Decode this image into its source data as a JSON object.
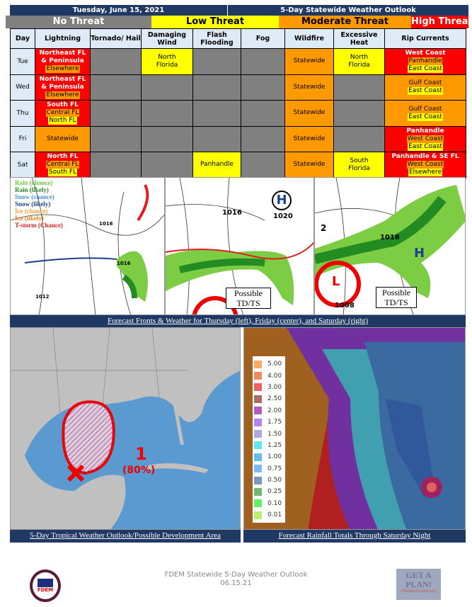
{
  "header": {
    "date": "Tuesday, June 15, 2021",
    "title": "5-Day Statewide Weather Outlook"
  },
  "threat_legend": [
    {
      "label": "No Threat",
      "color": "#808080",
      "text_color": "#ffffff"
    },
    {
      "label": "Low Threat",
      "color": "#ffff00",
      "text_color": "#000000"
    },
    {
      "label": "Moderate Threat",
      "color": "#ff9900",
      "text_color": "#000000"
    },
    {
      "label": "High Threat",
      "color": "#ff0000",
      "text_color": "#ffffff"
    }
  ],
  "table": {
    "columns": [
      "Day",
      "Lightning",
      "Tornado/ Hail",
      "Damaging Wind",
      "Flash Flooding",
      "Fog",
      "Wildfire",
      "Excessive Heat",
      "Rip Currents"
    ],
    "rows": [
      {
        "day": "Tue",
        "cells": [
          {
            "bg": "r",
            "lines": [
              {
                "t": "Northeast FL",
                "l": "r"
              },
              {
                "t": "& Peninsula",
                "l": "r"
              },
              {
                "t": "Elsewhere",
                "l": "o"
              }
            ]
          },
          {
            "bg": "g",
            "lines": []
          },
          {
            "bg": "y",
            "lines": [
              {
                "t": "North",
                "l": "n"
              },
              {
                "t": "Florida",
                "l": "n"
              }
            ]
          },
          {
            "bg": "g",
            "lines": []
          },
          {
            "bg": "g",
            "lines": []
          },
          {
            "bg": "o",
            "lines": [
              {
                "t": "Statewide",
                "l": "n"
              }
            ]
          },
          {
            "bg": "y",
            "lines": [
              {
                "t": "North",
                "l": "n"
              },
              {
                "t": "Florida",
                "l": "n"
              }
            ]
          },
          {
            "bg": "r",
            "lines": [
              {
                "t": "West Coast",
                "l": "r"
              },
              {
                "t": "Panhandle",
                "l": "o"
              },
              {
                "t": "East Coast",
                "l": "y"
              }
            ]
          }
        ]
      },
      {
        "day": "Wed",
        "cells": [
          {
            "bg": "r",
            "lines": [
              {
                "t": "Northeast FL",
                "l": "r"
              },
              {
                "t": "& Peninsula",
                "l": "r"
              },
              {
                "t": "Elsewhere",
                "l": "o"
              }
            ]
          },
          {
            "bg": "g",
            "lines": []
          },
          {
            "bg": "g",
            "lines": []
          },
          {
            "bg": "g",
            "lines": []
          },
          {
            "bg": "g",
            "lines": []
          },
          {
            "bg": "o",
            "lines": [
              {
                "t": "Statewide",
                "l": "n"
              }
            ]
          },
          {
            "bg": "g",
            "lines": []
          },
          {
            "bg": "o",
            "lines": [
              {
                "t": "Gulf Coast",
                "l": "n"
              },
              {
                "t": "East Coast",
                "l": "y"
              }
            ]
          }
        ]
      },
      {
        "day": "Thu",
        "cells": [
          {
            "bg": "r",
            "lines": [
              {
                "t": "South FL",
                "l": "r"
              },
              {
                "t": "Central FL",
                "l": "o"
              },
              {
                "t": "North FL",
                "l": "y"
              }
            ]
          },
          {
            "bg": "g",
            "lines": []
          },
          {
            "bg": "g",
            "lines": []
          },
          {
            "bg": "g",
            "lines": []
          },
          {
            "bg": "g",
            "lines": []
          },
          {
            "bg": "o",
            "lines": [
              {
                "t": "Statewide",
                "l": "n"
              }
            ]
          },
          {
            "bg": "g",
            "lines": []
          },
          {
            "bg": "o",
            "lines": [
              {
                "t": "Gulf Coast",
                "l": "n"
              },
              {
                "t": "East Coast",
                "l": "y"
              }
            ]
          }
        ]
      },
      {
        "day": "Fri",
        "cells": [
          {
            "bg": "o",
            "lines": [
              {
                "t": "Statewide",
                "l": "n"
              }
            ]
          },
          {
            "bg": "g",
            "lines": []
          },
          {
            "bg": "g",
            "lines": []
          },
          {
            "bg": "g",
            "lines": []
          },
          {
            "bg": "g",
            "lines": []
          },
          {
            "bg": "o",
            "lines": [
              {
                "t": "Statewide",
                "l": "n"
              }
            ]
          },
          {
            "bg": "g",
            "lines": []
          },
          {
            "bg": "r",
            "lines": [
              {
                "t": "Panhandle",
                "l": "r"
              },
              {
                "t": "West Coast",
                "l": "o"
              },
              {
                "t": "East Coast",
                "l": "y"
              }
            ]
          }
        ]
      },
      {
        "day": "Sat",
        "cells": [
          {
            "bg": "r",
            "lines": [
              {
                "t": "North FL",
                "l": "r"
              },
              {
                "t": "Central FL",
                "l": "o"
              },
              {
                "t": "South FL",
                "l": "y"
              }
            ]
          },
          {
            "bg": "g",
            "lines": []
          },
          {
            "bg": "g",
            "lines": []
          },
          {
            "bg": "y",
            "lines": [
              {
                "t": "Panhandle",
                "l": "n"
              }
            ]
          },
          {
            "bg": "g",
            "lines": []
          },
          {
            "bg": "o",
            "lines": [
              {
                "t": "Statewide",
                "l": "n"
              }
            ]
          },
          {
            "bg": "y",
            "lines": [
              {
                "t": "South",
                "l": "n"
              },
              {
                "t": "Florida",
                "l": "n"
              }
            ]
          },
          {
            "bg": "r",
            "lines": [
              {
                "t": "Panhandle & SE FL",
                "l": "r"
              },
              {
                "t": "West Coast",
                "l": "o"
              },
              {
                "t": "Elsewhere",
                "l": "y"
              }
            ]
          }
        ]
      }
    ]
  },
  "fronts": {
    "legend": [
      {
        "t": "Rain (chance)",
        "c": "#66cc33"
      },
      {
        "t": "Rain (likely)",
        "c": "#228b22"
      },
      {
        "t": "Snow (chance)",
        "c": "#4a90d9"
      },
      {
        "t": "Snow (likely)",
        "c": "#1f3f8f"
      },
      {
        "t": "Ice (chance)",
        "c": "#f0a030"
      },
      {
        "t": "Ice (likely)",
        "c": "#e08020"
      },
      {
        "t": "T-storm (Chance)",
        "c": "#e02020"
      }
    ],
    "left_isobars": [
      "1016",
      "1016",
      "1012"
    ],
    "center_isobars": [
      "1016",
      "1020"
    ],
    "center_high": "H",
    "center_note": "Possible TD/TS",
    "right_isobars": [
      "1016",
      "1008",
      "2"
    ],
    "right_high": "H",
    "right_low": "L",
    "right_note": "Possible TD/TS",
    "caption": "Forecast Fronts & Weather for Thursday (left), Friday (center), and Saturday (right)"
  },
  "tropical": {
    "area_number": "1",
    "probability": "(80%)",
    "caption": "5-Day Tropical Weather Outlook/Possible Development Area"
  },
  "rainfall": {
    "legend": [
      {
        "v": "5.00",
        "c": "#ffaa66"
      },
      {
        "v": "4.00",
        "c": "#f08860"
      },
      {
        "v": "3.00",
        "c": "#f06060"
      },
      {
        "v": "2.50",
        "c": "#b06868"
      },
      {
        "v": "2.00",
        "c": "#b060b8"
      },
      {
        "v": "1.75",
        "c": "#b880f0"
      },
      {
        "v": "1.50",
        "c": "#b0a8e0"
      },
      {
        "v": "1.25",
        "c": "#60e8f0"
      },
      {
        "v": "1.00",
        "c": "#60c0e8"
      },
      {
        "v": "0.75",
        "c": "#80b8f8"
      },
      {
        "v": "0.50",
        "c": "#7898c0"
      },
      {
        "v": "0.25",
        "c": "#70b870"
      },
      {
        "v": "0.10",
        "c": "#60f060"
      },
      {
        "v": "0.01",
        "c": "#b8f070"
      }
    ],
    "caption": "Forecast Rainfall Totals Through Saturday Night"
  },
  "footer": {
    "line1": "FDEM Statewide 5-Day Weather Outlook",
    "line2": "06.15.21",
    "logo_text": "FDEM",
    "badge_text": "GET A PLAN!",
    "badge_url_text": "FloridaDisaster.org"
  }
}
